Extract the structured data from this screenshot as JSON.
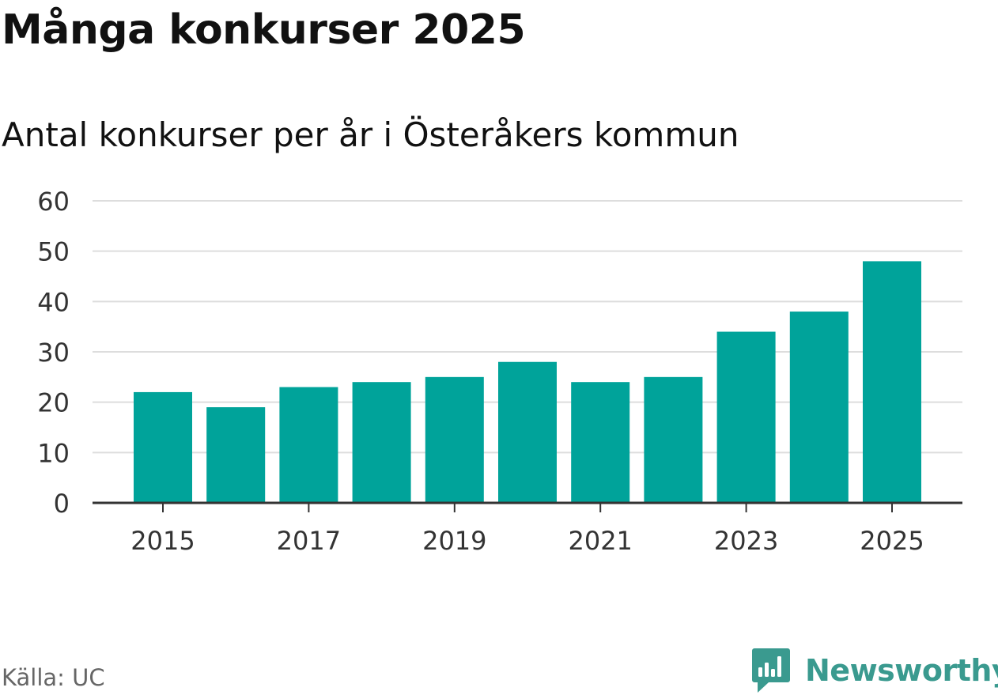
{
  "title": "Många konkurser 2025",
  "subtitle": "Antal konkurser per år i Österåkers kommun",
  "source": "Källa: UC",
  "brand": {
    "name": "Newsworthy",
    "icon": "newsworthy-logo-icon",
    "color": "#3a9a8f"
  },
  "colors": {
    "bar": "#00a39a",
    "grid": "#dddddd",
    "axis": "#333333",
    "tick_text": "#333333"
  },
  "chart_data": {
    "type": "bar",
    "title": "Många konkurser 2025",
    "subtitle": "Antal konkurser per år i Österåkers kommun",
    "xlabel": "",
    "ylabel": "",
    "ylim": [
      0,
      60
    ],
    "yticks": [
      "0",
      "10",
      "20",
      "30",
      "40",
      "50",
      "60"
    ],
    "ytick_values": [
      0,
      10,
      20,
      30,
      40,
      50,
      60
    ],
    "categories": [
      "2015",
      "2016",
      "2017",
      "2018",
      "2019",
      "2020",
      "2021",
      "2022",
      "2023",
      "2024",
      "2025"
    ],
    "xtick_labels": [
      "2015",
      "",
      "2017",
      "",
      "2019",
      "",
      "2021",
      "",
      "2023",
      "",
      "2025"
    ],
    "values": [
      22,
      19,
      23,
      24,
      25,
      28,
      24,
      25,
      34,
      38,
      48
    ],
    "grid": true,
    "legend": "none"
  }
}
